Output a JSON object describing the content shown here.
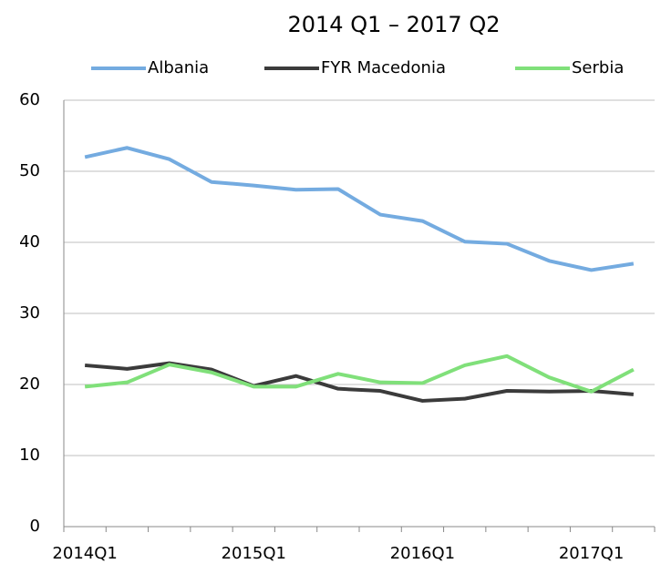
{
  "chart_data": {
    "type": "line",
    "title": "2014 Q1 – 2017 Q2",
    "categories": [
      "2014Q1",
      null,
      null,
      null,
      "2015Q1",
      null,
      null,
      null,
      "2016Q1",
      null,
      null,
      null,
      "2017Q1",
      null
    ],
    "series": [
      {
        "name": "Albania",
        "color": "#74abe0",
        "values": [
          52,
          53.3,
          51.7,
          48.5,
          48,
          47.4,
          47.5,
          43.9,
          43,
          40.1,
          39.8,
          37.4,
          36.1,
          37
        ]
      },
      {
        "name": "FYR Macedonia",
        "color": "#3b3b3b",
        "values": [
          22.7,
          22.2,
          23,
          22.1,
          19.8,
          21.2,
          19.4,
          19.1,
          17.7,
          18,
          19.1,
          19,
          19.1,
          18.6
        ]
      },
      {
        "name": "Serbia",
        "color": "#80e07a",
        "values": [
          19.7,
          20.3,
          22.8,
          21.7,
          19.7,
          19.7,
          21.5,
          20.3,
          20.2,
          22.7,
          24,
          21,
          19,
          22.1
        ]
      }
    ],
    "ylim": [
      0,
      60
    ],
    "yticks": [
      0,
      10,
      20,
      30,
      40,
      50,
      60
    ],
    "grid": true,
    "legend": "top"
  }
}
